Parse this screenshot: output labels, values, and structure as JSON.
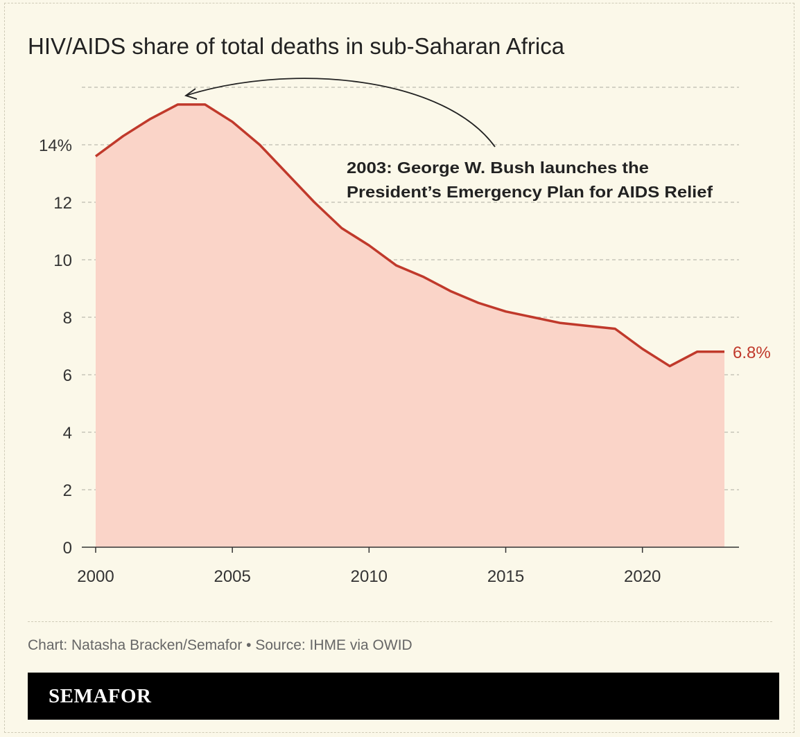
{
  "title": "HIV/AIDS share of total deaths in sub-Saharan Africa",
  "credit": "Chart: Natasha Bracken/Semafor • Source: IHME via OWID",
  "brand": "SEMAFOR",
  "colors": {
    "line": "#c0392b",
    "fill": "#fad4c8",
    "background": "#fbf8e9",
    "end_label": "#c0392b"
  },
  "chart_data": {
    "type": "area",
    "title": "HIV/AIDS share of total deaths in sub-Saharan Africa",
    "xlabel": "",
    "ylabel": "",
    "x": [
      2000,
      2001,
      2002,
      2003,
      2004,
      2005,
      2006,
      2007,
      2008,
      2009,
      2010,
      2011,
      2012,
      2013,
      2014,
      2015,
      2016,
      2017,
      2018,
      2019,
      2020,
      2021,
      2022,
      2023
    ],
    "series": [
      {
        "name": "HIV/AIDS share of deaths (%)",
        "values": [
          13.6,
          14.3,
          14.9,
          15.4,
          15.4,
          14.8,
          14.0,
          13.0,
          12.0,
          11.1,
          10.5,
          9.8,
          9.4,
          8.9,
          8.5,
          8.2,
          8.0,
          7.8,
          7.7,
          7.6,
          6.9,
          6.3,
          6.8,
          6.8
        ]
      }
    ],
    "xlim": [
      2000,
      2023
    ],
    "ylim": [
      0,
      16
    ],
    "y_ticks": [
      0,
      2,
      4,
      6,
      8,
      10,
      12,
      14,
      16
    ],
    "y_tick_labels": [
      "0",
      "2",
      "4",
      "6",
      "8",
      "10",
      "12",
      "14%",
      ""
    ],
    "x_ticks": [
      2000,
      2005,
      2010,
      2015,
      2020
    ],
    "x_tick_labels": [
      "2000",
      "2005",
      "2010",
      "2015",
      "2020"
    ],
    "grid": true,
    "end_label": "6.8%",
    "annotation": {
      "lines": [
        "2003: George W. Bush launches the",
        "President’s Emergency Plan for AIDS Relief"
      ],
      "target_year": 2003
    }
  }
}
